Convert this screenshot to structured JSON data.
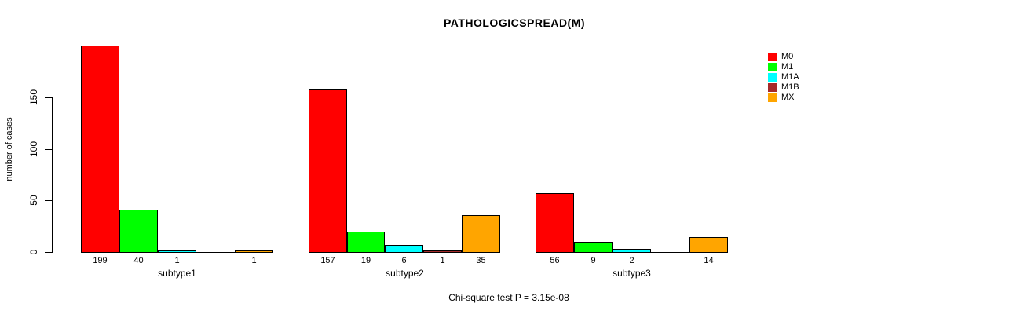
{
  "title": "PATHOLOGICSPREAD(M)",
  "chart_data": {
    "type": "bar",
    "title": "PATHOLOGICSPREAD(M)",
    "ylabel": "number of cases",
    "xlabel": "",
    "categories": [
      "subtype1",
      "subtype2",
      "subtype3"
    ],
    "series": [
      {
        "name": "M0",
        "color": "#FF0000",
        "values": [
          199,
          157,
          56
        ]
      },
      {
        "name": "M1",
        "color": "#00FF00",
        "values": [
          40,
          19,
          9
        ]
      },
      {
        "name": "M1A",
        "color": "#00FFFF",
        "values": [
          1,
          6,
          2
        ]
      },
      {
        "name": "M1B",
        "color": "#A52A2A",
        "values": [
          0,
          1,
          0
        ]
      },
      {
        "name": "MX",
        "color": "#FFA500",
        "values": [
          1,
          35,
          14
        ]
      }
    ],
    "bar_labels": [
      [
        "199",
        "40",
        "1",
        "",
        "1"
      ],
      [
        "157",
        "19",
        "6",
        "1",
        "35"
      ],
      [
        "56",
        "9",
        "2",
        "",
        "14"
      ]
    ],
    "yticks": [
      0,
      50,
      100,
      150
    ],
    "ylim": [
      0,
      205
    ],
    "grid": false,
    "legend_position": "right",
    "legend_items": [
      {
        "label": "M0",
        "color": "#FF0000"
      },
      {
        "label": "M1",
        "color": "#00FF00"
      },
      {
        "label": "M1A",
        "color": "#00FFFF"
      },
      {
        "label": "M1B",
        "color": "#A52A2A"
      },
      {
        "label": "MX",
        "color": "#FFA500"
      }
    ],
    "annotation": "Chi-square test P = 3.15e-08"
  }
}
